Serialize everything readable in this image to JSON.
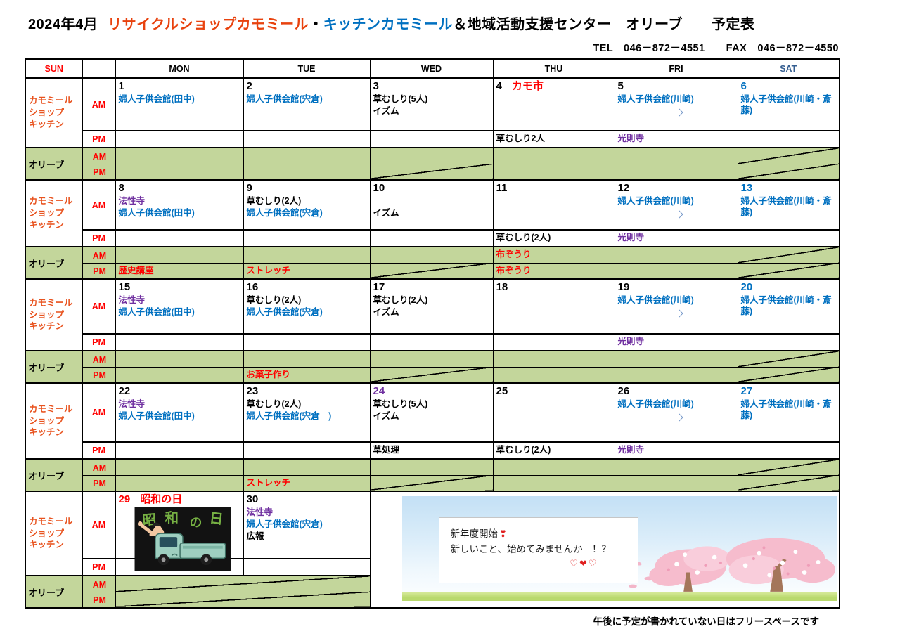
{
  "title": {
    "month": "2024年4月",
    "shop": "リサイクルショップカモミール",
    "dot": "・",
    "kitchen": "キッチンカモミール",
    "rest": "＆地域活動支援センター　オリーブ　　予定表"
  },
  "contact": "TEL　046－872－4551　　FAX　046－872－4550",
  "header": {
    "days": [
      "SUN",
      "",
      "MON",
      "TUE",
      "WED",
      "THU",
      "FRI",
      "SAT"
    ]
  },
  "labels": {
    "shop": [
      "カモミール",
      "ショップ",
      "キッチン"
    ],
    "olive": "オリーブ",
    "am": "AM",
    "pm": "PM"
  },
  "colors": {
    "event_blue": "#0070c0",
    "event_purple": "#7030a0",
    "event_red": "#ff0000",
    "shop_label_orange": "#e8531f",
    "olive_green": "#c3d69b",
    "sat_header_blue": "#365f91"
  },
  "weeks": [
    {
      "days": [
        {
          "num": "1",
          "am": [
            {
              "t": "婦人子供会館(田中)",
              "c": "blue"
            }
          ]
        },
        {
          "num": "2",
          "am": [
            {
              "t": "婦人子供会館(宍倉)",
              "c": "blue"
            }
          ]
        },
        {
          "num": "3",
          "am": [
            {
              "t": "草むしり(5人)",
              "c": "k"
            },
            {
              "t": "イズム",
              "c": "k",
              "arrow": true
            }
          ],
          "opm": {
            "slash": true
          }
        },
        {
          "num": "4",
          "suffix": {
            "t": "カモ市",
            "c": "red"
          },
          "pm": {
            "t": "草むしり2人",
            "c": "k"
          }
        },
        {
          "num": "5",
          "am": [
            {
              "t": "婦人子供会館(川崎)",
              "c": "blue"
            }
          ],
          "pm": {
            "t": "光則寺",
            "c": "purple"
          }
        },
        {
          "num": "6",
          "nc": "blue",
          "am": [
            {
              "t": "婦人子供会館(川崎・斎藤)",
              "c": "blue"
            }
          ],
          "oam": {
            "slash": true
          },
          "opm": {
            "slash": true
          }
        }
      ]
    },
    {
      "days": [
        {
          "num": "8",
          "am": [
            {
              "t": "法性寺",
              "c": "purple"
            },
            {
              "t": "婦人子供会館(田中)",
              "c": "blue"
            }
          ],
          "opm": {
            "t": "歴史講座",
            "c": "red"
          }
        },
        {
          "num": "9",
          "am": [
            {
              "t": "草むしり(2人)",
              "c": "k"
            },
            {
              "t": "婦人子供会館(宍倉)",
              "c": "blue"
            }
          ],
          "opm": {
            "t": "ストレッチ",
            "c": "red"
          }
        },
        {
          "num": "10",
          "am": [
            {
              "t": ""
            },
            {
              "t": "イズム",
              "c": "k",
              "arrow": true
            }
          ],
          "opm": {
            "slash": true
          }
        },
        {
          "num": "11",
          "pm": {
            "t": "草むしり(2人)",
            "c": "k"
          },
          "oam": {
            "t": "布ぞうり",
            "c": "red"
          },
          "opm": {
            "t": "布ぞうり",
            "c": "red"
          }
        },
        {
          "num": "12",
          "am": [
            {
              "t": "婦人子供会館(川崎)",
              "c": "blue"
            }
          ],
          "pm": {
            "t": "光則寺",
            "c": "purple"
          }
        },
        {
          "num": "13",
          "nc": "blue",
          "am": [
            {
              "t": "婦人子供会館(川崎・斎藤)",
              "c": "blue"
            }
          ],
          "oam": {
            "slash": true
          },
          "opm": {
            "slash": true
          }
        }
      ]
    },
    {
      "days": [
        {
          "num": "15",
          "am": [
            {
              "t": "法性寺",
              "c": "purple"
            },
            {
              "t": "婦人子供会館(田中)",
              "c": "blue"
            }
          ]
        },
        {
          "num": "16",
          "am": [
            {
              "t": "草むしり(2人)",
              "c": "k"
            },
            {
              "t": "婦人子供会館(宍倉)",
              "c": "blue"
            }
          ],
          "opm": {
            "t": "お菓子作り",
            "c": "red"
          }
        },
        {
          "num": "17",
          "am": [
            {
              "t": "草むしり(2人)",
              "c": "k"
            },
            {
              "t": "イズム",
              "c": "k",
              "arrow": true
            }
          ],
          "opm": {
            "slash": true
          }
        },
        {
          "num": "18"
        },
        {
          "num": "19",
          "am": [
            {
              "t": "婦人子供会館(川崎)",
              "c": "blue"
            }
          ],
          "pm": {
            "t": "光則寺",
            "c": "purple"
          }
        },
        {
          "num": "20",
          "nc": "blue",
          "am": [
            {
              "t": "婦人子供会館(川崎・斎藤)",
              "c": "blue"
            }
          ],
          "oam": {
            "slash": true
          },
          "opm": {
            "slash": true
          }
        }
      ]
    },
    {
      "days": [
        {
          "num": "22",
          "am": [
            {
              "t": "法性寺",
              "c": "purple"
            },
            {
              "t": "婦人子供会館(田中)",
              "c": "blue"
            }
          ]
        },
        {
          "num": "23",
          "am": [
            {
              "t": "草むしり(2人)",
              "c": "k"
            },
            {
              "t": "婦人子供会館(宍倉　)",
              "c": "blue"
            }
          ],
          "opm": {
            "t": "ストレッチ",
            "c": "red"
          }
        },
        {
          "num": "24",
          "nc": "purple",
          "am": [
            {
              "t": "草むしり(5人)",
              "c": "k"
            },
            {
              "t": "イズム",
              "c": "k",
              "arrow": true
            }
          ],
          "pm": {
            "t": "草処理",
            "c": "k"
          },
          "opm": {
            "slash": true
          }
        },
        {
          "num": "25",
          "pm": {
            "t": "草むしり(2人)",
            "c": "k"
          }
        },
        {
          "num": "26",
          "am": [
            {
              "t": "婦人子供会館(川崎)",
              "c": "blue"
            }
          ],
          "pm": {
            "t": "光則寺",
            "c": "purple"
          }
        },
        {
          "num": "27",
          "nc": "blue",
          "am": [
            {
              "t": "婦人子供会館(川崎・斎藤)",
              "c": "blue"
            }
          ],
          "oam": {
            "slash": true
          },
          "opm": {
            "slash": true
          }
        }
      ]
    },
    {
      "decoration": true,
      "olive_merge_slash": true,
      "days": [
        {
          "num": "29",
          "nc": "red",
          "suffix": {
            "t": "昭和の日",
            "c": "red"
          },
          "illustration": true
        },
        {
          "num": "30",
          "am": [
            {
              "t": "法性寺",
              "c": "purple"
            },
            {
              "t": "婦人子供会館(宍倉)",
              "c": "blue"
            },
            {
              "t": "広報",
              "c": "k"
            }
          ]
        }
      ]
    }
  ],
  "illustration": {
    "chars": [
      "昭",
      "和",
      "の",
      "日"
    ]
  },
  "decoration": {
    "line1": "新年度開始",
    "line1_heart": "❣",
    "line2": "新しいこと、始めてみませんか　！？",
    "hearts": "♡❤♡"
  },
  "footer_note": "午後に予定が書かれていない日はフリースペースです"
}
